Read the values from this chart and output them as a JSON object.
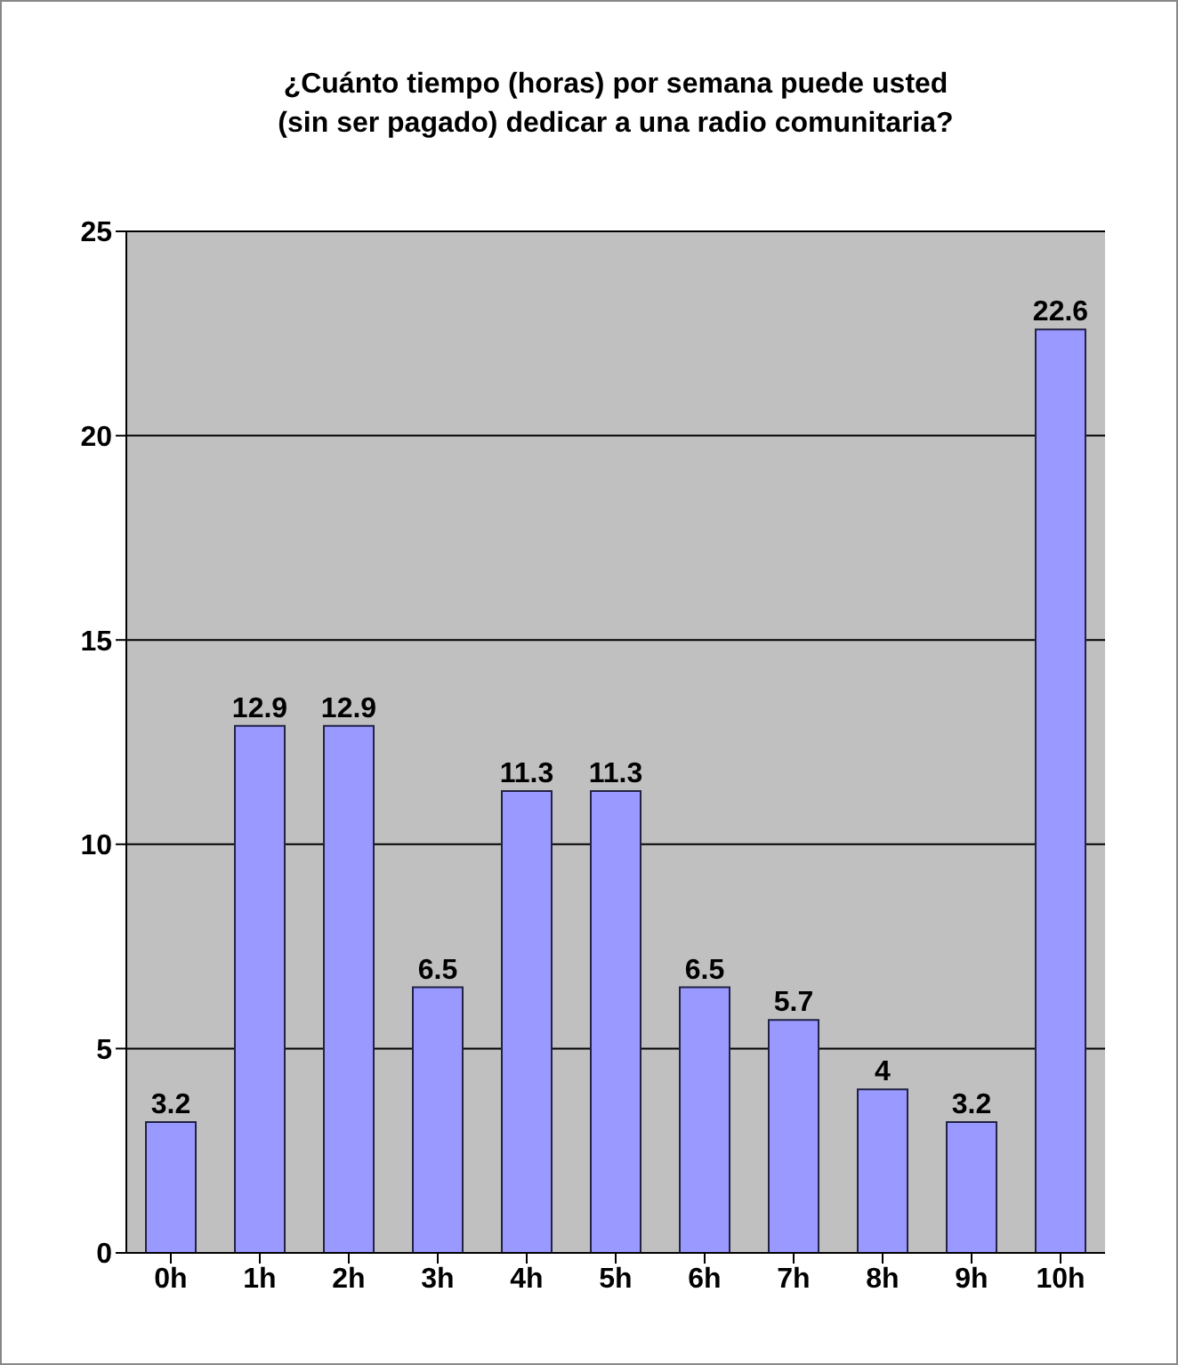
{
  "chart_data": {
    "type": "bar",
    "title": "¿Cuánto tiempo (horas) por semana puede usted (sin ser pagado) dedicar a una radio comunitaria?",
    "categories": [
      "0h",
      "1h",
      "2h",
      "3h",
      "4h",
      "5h",
      "6h",
      "7h",
      "8h",
      "9h",
      "10h"
    ],
    "values": [
      3.2,
      12.9,
      12.9,
      6.5,
      11.3,
      11.3,
      6.5,
      5.7,
      4,
      3.2,
      22.6
    ],
    "color": "#9999ff",
    "ylim": [
      0,
      25
    ],
    "yticks": [
      0,
      5,
      10,
      15,
      20,
      25
    ],
    "grid": "y",
    "data_labels": true
  }
}
